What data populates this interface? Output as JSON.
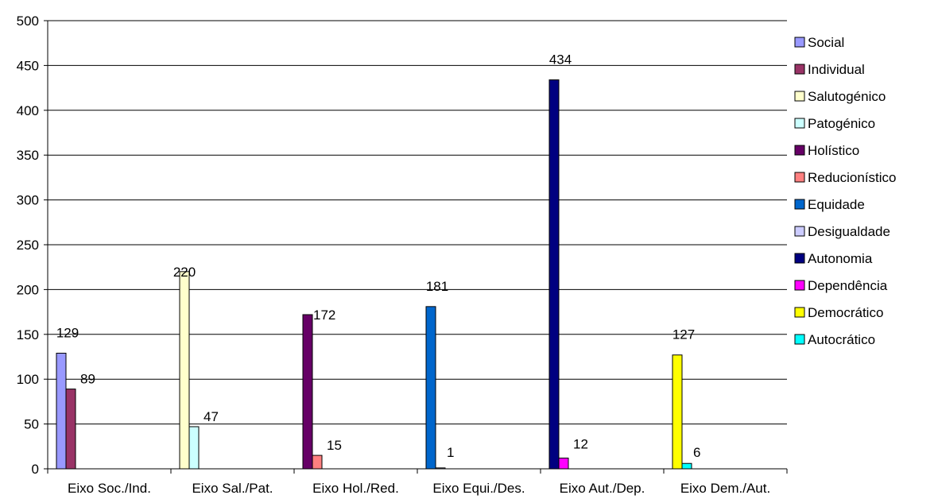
{
  "chart_data": {
    "type": "bar",
    "categories": [
      "Eixo Soc./Ind.",
      "Eixo Sal./Pat.",
      "Eixo Hol./Red.",
      "Eixo Equi./Des.",
      "Eixo Aut./Dep.",
      "Eixo Dem./Aut."
    ],
    "series": [
      {
        "name": "Social",
        "color": "#9999ff",
        "values": [
          129,
          null,
          null,
          null,
          null,
          null
        ]
      },
      {
        "name": "Individual",
        "color": "#993366",
        "values": [
          89,
          null,
          null,
          null,
          null,
          null
        ]
      },
      {
        "name": "Salutogénico",
        "color": "#ffffcc",
        "values": [
          null,
          220,
          null,
          null,
          null,
          null
        ]
      },
      {
        "name": "Patogénico",
        "color": "#ccffff",
        "values": [
          null,
          47,
          null,
          null,
          null,
          null
        ]
      },
      {
        "name": "Holístico",
        "color": "#660066",
        "values": [
          null,
          null,
          172,
          null,
          null,
          null
        ]
      },
      {
        "name": "Reducionístico",
        "color": "#ff8080",
        "values": [
          null,
          null,
          15,
          null,
          null,
          null
        ]
      },
      {
        "name": "Equidade",
        "color": "#0066cc",
        "values": [
          null,
          null,
          null,
          181,
          null,
          null
        ]
      },
      {
        "name": "Desigualdade",
        "color": "#ccccff",
        "values": [
          null,
          null,
          null,
          1,
          null,
          null
        ]
      },
      {
        "name": "Autonomia",
        "color": "#000080",
        "values": [
          null,
          null,
          null,
          null,
          434,
          null
        ]
      },
      {
        "name": "Dependência",
        "color": "#ff00ff",
        "values": [
          null,
          null,
          null,
          null,
          12,
          null
        ]
      },
      {
        "name": "Democrático",
        "color": "#ffff00",
        "values": [
          null,
          null,
          null,
          null,
          null,
          127
        ]
      },
      {
        "name": "Autocrático",
        "color": "#00ffff",
        "values": [
          null,
          null,
          null,
          null,
          null,
          6
        ]
      }
    ],
    "ylim": [
      0,
      500
    ],
    "yticks": [
      0,
      50,
      100,
      150,
      200,
      250,
      300,
      350,
      400,
      450,
      500
    ],
    "title": "",
    "xlabel": "",
    "ylabel": "",
    "grid": "horizontal",
    "legend_position": "right"
  }
}
